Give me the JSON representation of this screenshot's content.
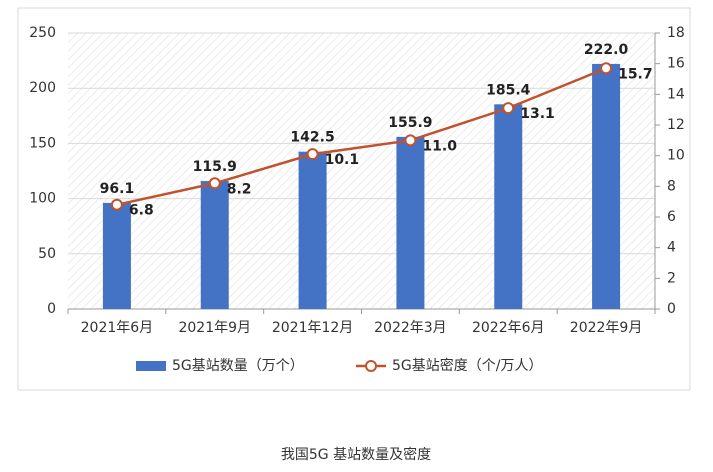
{
  "chart_data": {
    "type": "combo",
    "caption": "我国5G 基站数量及密度",
    "categories": [
      "2021年6月",
      "2021年9月",
      "2021年12月",
      "2022年3月",
      "2022年6月",
      "2022年9月"
    ],
    "series": [
      {
        "name": "5G基站数量（万个）",
        "type": "bar",
        "color": "#4472c4",
        "values": [
          96.1,
          115.9,
          142.5,
          155.9,
          185.4,
          222.0
        ],
        "value_labels": [
          "96.1",
          "115.9",
          "142.5",
          "155.9",
          "185.4",
          "222.0"
        ]
      },
      {
        "name": "5G基站密度（个/万人）",
        "type": "line",
        "axis": "y2",
        "color": "#c0532f",
        "values": [
          6.8,
          8.2,
          10.1,
          11.0,
          13.1,
          15.7
        ],
        "value_labels": [
          "6.8",
          "8.2",
          "10.1",
          "11.0",
          "13.1",
          "15.7"
        ]
      }
    ],
    "ylim": [
      0,
      250
    ],
    "yticks": [
      0,
      50,
      100,
      150,
      200,
      250
    ],
    "y2lim": [
      0,
      18
    ],
    "y2ticks": [
      0,
      2,
      4,
      6,
      8,
      10,
      12,
      14,
      16,
      18
    ],
    "grid": true,
    "legend": "bottom"
  }
}
